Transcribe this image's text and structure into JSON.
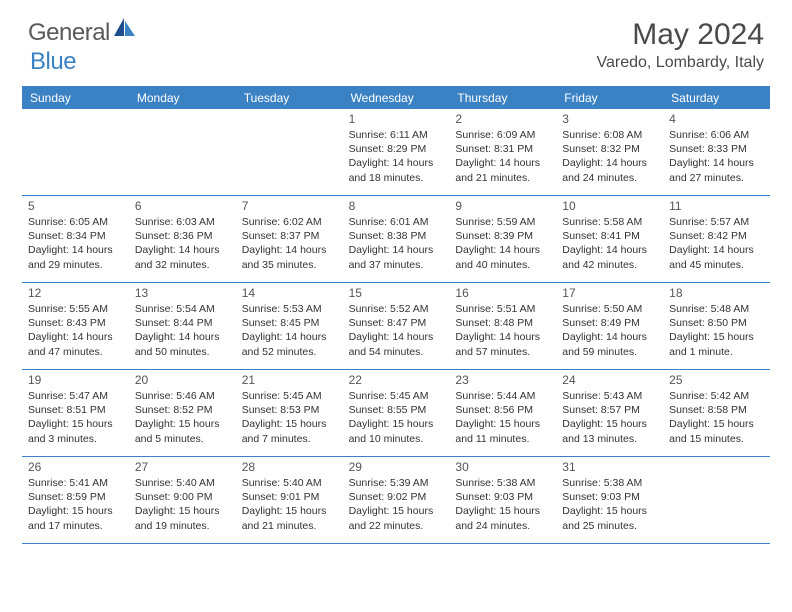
{
  "logo": {
    "general": "General",
    "blue": "Blue"
  },
  "title": {
    "month": "May 2024",
    "location": "Varedo, Lombardy, Italy"
  },
  "colors": {
    "accent": "#3b82c4",
    "text": "#333333",
    "heading": "#4a4a4a"
  },
  "dayHeaders": [
    "Sunday",
    "Monday",
    "Tuesday",
    "Wednesday",
    "Thursday",
    "Friday",
    "Saturday"
  ],
  "weeks": [
    [
      {
        "num": "",
        "sunrise": "",
        "sunset": "",
        "daylight": ""
      },
      {
        "num": "",
        "sunrise": "",
        "sunset": "",
        "daylight": ""
      },
      {
        "num": "",
        "sunrise": "",
        "sunset": "",
        "daylight": ""
      },
      {
        "num": "1",
        "sunrise": "Sunrise: 6:11 AM",
        "sunset": "Sunset: 8:29 PM",
        "daylight": "Daylight: 14 hours and 18 minutes."
      },
      {
        "num": "2",
        "sunrise": "Sunrise: 6:09 AM",
        "sunset": "Sunset: 8:31 PM",
        "daylight": "Daylight: 14 hours and 21 minutes."
      },
      {
        "num": "3",
        "sunrise": "Sunrise: 6:08 AM",
        "sunset": "Sunset: 8:32 PM",
        "daylight": "Daylight: 14 hours and 24 minutes."
      },
      {
        "num": "4",
        "sunrise": "Sunrise: 6:06 AM",
        "sunset": "Sunset: 8:33 PM",
        "daylight": "Daylight: 14 hours and 27 minutes."
      }
    ],
    [
      {
        "num": "5",
        "sunrise": "Sunrise: 6:05 AM",
        "sunset": "Sunset: 8:34 PM",
        "daylight": "Daylight: 14 hours and 29 minutes."
      },
      {
        "num": "6",
        "sunrise": "Sunrise: 6:03 AM",
        "sunset": "Sunset: 8:36 PM",
        "daylight": "Daylight: 14 hours and 32 minutes."
      },
      {
        "num": "7",
        "sunrise": "Sunrise: 6:02 AM",
        "sunset": "Sunset: 8:37 PM",
        "daylight": "Daylight: 14 hours and 35 minutes."
      },
      {
        "num": "8",
        "sunrise": "Sunrise: 6:01 AM",
        "sunset": "Sunset: 8:38 PM",
        "daylight": "Daylight: 14 hours and 37 minutes."
      },
      {
        "num": "9",
        "sunrise": "Sunrise: 5:59 AM",
        "sunset": "Sunset: 8:39 PM",
        "daylight": "Daylight: 14 hours and 40 minutes."
      },
      {
        "num": "10",
        "sunrise": "Sunrise: 5:58 AM",
        "sunset": "Sunset: 8:41 PM",
        "daylight": "Daylight: 14 hours and 42 minutes."
      },
      {
        "num": "11",
        "sunrise": "Sunrise: 5:57 AM",
        "sunset": "Sunset: 8:42 PM",
        "daylight": "Daylight: 14 hours and 45 minutes."
      }
    ],
    [
      {
        "num": "12",
        "sunrise": "Sunrise: 5:55 AM",
        "sunset": "Sunset: 8:43 PM",
        "daylight": "Daylight: 14 hours and 47 minutes."
      },
      {
        "num": "13",
        "sunrise": "Sunrise: 5:54 AM",
        "sunset": "Sunset: 8:44 PM",
        "daylight": "Daylight: 14 hours and 50 minutes."
      },
      {
        "num": "14",
        "sunrise": "Sunrise: 5:53 AM",
        "sunset": "Sunset: 8:45 PM",
        "daylight": "Daylight: 14 hours and 52 minutes."
      },
      {
        "num": "15",
        "sunrise": "Sunrise: 5:52 AM",
        "sunset": "Sunset: 8:47 PM",
        "daylight": "Daylight: 14 hours and 54 minutes."
      },
      {
        "num": "16",
        "sunrise": "Sunrise: 5:51 AM",
        "sunset": "Sunset: 8:48 PM",
        "daylight": "Daylight: 14 hours and 57 minutes."
      },
      {
        "num": "17",
        "sunrise": "Sunrise: 5:50 AM",
        "sunset": "Sunset: 8:49 PM",
        "daylight": "Daylight: 14 hours and 59 minutes."
      },
      {
        "num": "18",
        "sunrise": "Sunrise: 5:48 AM",
        "sunset": "Sunset: 8:50 PM",
        "daylight": "Daylight: 15 hours and 1 minute."
      }
    ],
    [
      {
        "num": "19",
        "sunrise": "Sunrise: 5:47 AM",
        "sunset": "Sunset: 8:51 PM",
        "daylight": "Daylight: 15 hours and 3 minutes."
      },
      {
        "num": "20",
        "sunrise": "Sunrise: 5:46 AM",
        "sunset": "Sunset: 8:52 PM",
        "daylight": "Daylight: 15 hours and 5 minutes."
      },
      {
        "num": "21",
        "sunrise": "Sunrise: 5:45 AM",
        "sunset": "Sunset: 8:53 PM",
        "daylight": "Daylight: 15 hours and 7 minutes."
      },
      {
        "num": "22",
        "sunrise": "Sunrise: 5:45 AM",
        "sunset": "Sunset: 8:55 PM",
        "daylight": "Daylight: 15 hours and 10 minutes."
      },
      {
        "num": "23",
        "sunrise": "Sunrise: 5:44 AM",
        "sunset": "Sunset: 8:56 PM",
        "daylight": "Daylight: 15 hours and 11 minutes."
      },
      {
        "num": "24",
        "sunrise": "Sunrise: 5:43 AM",
        "sunset": "Sunset: 8:57 PM",
        "daylight": "Daylight: 15 hours and 13 minutes."
      },
      {
        "num": "25",
        "sunrise": "Sunrise: 5:42 AM",
        "sunset": "Sunset: 8:58 PM",
        "daylight": "Daylight: 15 hours and 15 minutes."
      }
    ],
    [
      {
        "num": "26",
        "sunrise": "Sunrise: 5:41 AM",
        "sunset": "Sunset: 8:59 PM",
        "daylight": "Daylight: 15 hours and 17 minutes."
      },
      {
        "num": "27",
        "sunrise": "Sunrise: 5:40 AM",
        "sunset": "Sunset: 9:00 PM",
        "daylight": "Daylight: 15 hours and 19 minutes."
      },
      {
        "num": "28",
        "sunrise": "Sunrise: 5:40 AM",
        "sunset": "Sunset: 9:01 PM",
        "daylight": "Daylight: 15 hours and 21 minutes."
      },
      {
        "num": "29",
        "sunrise": "Sunrise: 5:39 AM",
        "sunset": "Sunset: 9:02 PM",
        "daylight": "Daylight: 15 hours and 22 minutes."
      },
      {
        "num": "30",
        "sunrise": "Sunrise: 5:38 AM",
        "sunset": "Sunset: 9:03 PM",
        "daylight": "Daylight: 15 hours and 24 minutes."
      },
      {
        "num": "31",
        "sunrise": "Sunrise: 5:38 AM",
        "sunset": "Sunset: 9:03 PM",
        "daylight": "Daylight: 15 hours and 25 minutes."
      },
      {
        "num": "",
        "sunrise": "",
        "sunset": "",
        "daylight": ""
      }
    ]
  ]
}
